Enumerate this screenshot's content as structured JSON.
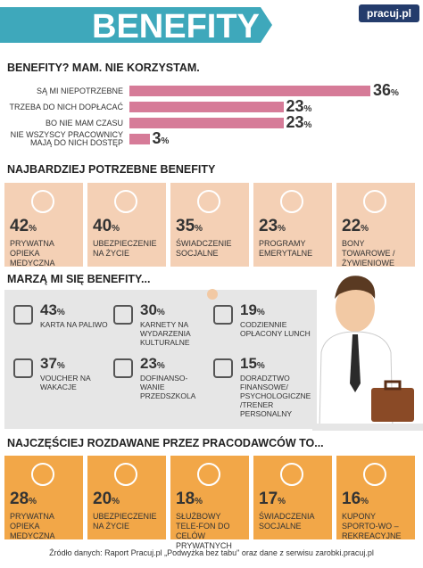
{
  "header": {
    "title": "BENEFITY",
    "brand": "pracuj.pl"
  },
  "unit": "%",
  "reasons": {
    "title": "BENEFITY? MAM. NIE KORZYSTAM.",
    "items": [
      {
        "label": "SĄ MI NIEPOTRZEBNE",
        "value": 36
      },
      {
        "label": "TRZEBA DO NICH DOPŁACAĆ",
        "value": 23
      },
      {
        "label": "BO NIE MAM CZASU",
        "value": 23
      },
      {
        "label": "NIE WSZYSCY PRACOWNICY MAJĄ DO NICH DOSTĘP",
        "value": 3
      }
    ]
  },
  "needed": {
    "title": "NAJBARDZIEJ POTRZEBNE BENEFITY",
    "items": [
      {
        "value": 42,
        "label": "PRYWATNA OPIEKA MEDYCZNA"
      },
      {
        "value": 40,
        "label": "UBEZPIECZENIE NA ŻYCIE"
      },
      {
        "value": 35,
        "label": "ŚWIADCZENIE SOCJALNE"
      },
      {
        "value": 23,
        "label": "PROGRAMY EMERYTALNE"
      },
      {
        "value": 22,
        "label": "BONY TOWAROWE /ŻYWIENIOWE"
      }
    ]
  },
  "dreams": {
    "title": "MARZĄ MI SIĘ BENEFITY...",
    "items": [
      {
        "value": 43,
        "label": "KARTA NA PALIWO"
      },
      {
        "value": 30,
        "label": "KARNETY NA WYDARZENIA KULTURALNE"
      },
      {
        "value": 19,
        "label": "CODZIENNIE OPŁACONY LUNCH"
      },
      {
        "value": 37,
        "label": "VOUCHER NA WAKACJE"
      },
      {
        "value": 23,
        "label": "DOFINANSO-WANIE PRZEDSZKOLA"
      },
      {
        "value": 15,
        "label": "DORADZTWO FINANSOWE/ PSYCHOLOGICZNE /TRENER PERSONALNY"
      }
    ]
  },
  "given": {
    "title": "NAJCZĘŚCIEJ ROZDAWANE PRZEZ PRACODAWCÓW TO...",
    "items": [
      {
        "value": 28,
        "label": "PRYWATNA OPIEKA MEDYCZNA"
      },
      {
        "value": 20,
        "label": "UBEZPIECZENIE NA ŻYCIE"
      },
      {
        "value": 18,
        "label": "SŁUŻBOWY TELE-FON DO CELÓW PRYWATNYCH"
      },
      {
        "value": 17,
        "label": "ŚWIADCZENIA SOCJALNE"
      },
      {
        "value": 16,
        "label": "KUPONY SPORTO-WO – REKREACYJNE"
      }
    ]
  },
  "footer": "Źródło danych: Raport Pracuj.pl „Podwyżka bez tabu\" oraz dane z serwisu zarobki.pracuj.pl"
}
